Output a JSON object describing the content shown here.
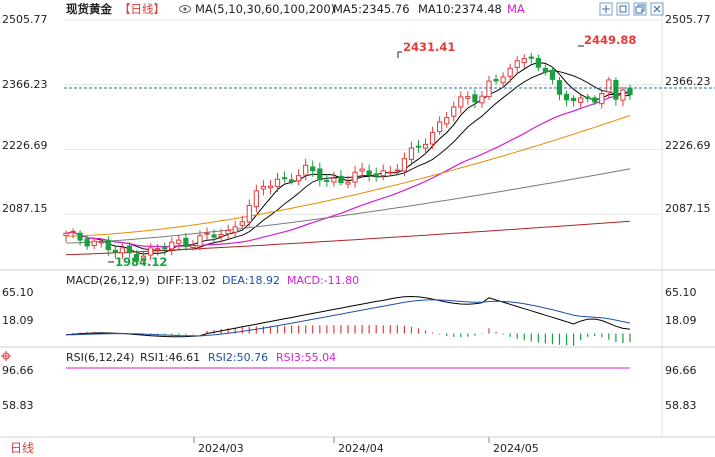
{
  "header": {
    "instrument": "现货黄金",
    "period": "【日线】",
    "ma_label": "MA(5,10,30,60,100,200)",
    "ma5_label": "MA5:2345.76",
    "ma10_label": "MA10:2374.48",
    "ma_more": "MA"
  },
  "toolbar": {
    "icons": [
      "move-icon",
      "window-icon",
      "restore-icon",
      "close-icon"
    ]
  },
  "price_axis": {
    "ticks": [
      "2505.77",
      "2366.23",
      "2226.69",
      "2087.15"
    ],
    "tick_values": [
      2505.77,
      2366.23,
      2226.69,
      2087.15
    ],
    "current": "2366.23",
    "high_label": "2449.88",
    "high2_label": "2431.41",
    "low_label": "1984.12"
  },
  "macd": {
    "label": "MACD(26,12,9)",
    "diff": "DIFF:13.02",
    "dea": "DEA:18.92",
    "macd": "MACD:-11.80",
    "ticks": [
      "65.10",
      "18.09"
    ],
    "tick_values": [
      65.1,
      18.09
    ]
  },
  "rsi": {
    "label": "RSI(6,12,24)",
    "rsi1": "RSI1:46.61",
    "rsi2": "RSI2:50.76",
    "rsi3": "RSI3:55.04",
    "ticks": [
      "96.66",
      "58.83"
    ],
    "tick_values": [
      96.66,
      58.83
    ]
  },
  "footer": {
    "period_button": "日线",
    "dates": [
      "2024/03",
      "2024/04",
      "2024/05"
    ]
  },
  "colors": {
    "up": "#e23b3b",
    "down": "#1a9e3e",
    "ma5": "#000000",
    "ma10": "#111111",
    "ma30": "#d21fd6",
    "ma60": "#e88c00",
    "ma100": "#7a7a7a",
    "ma200": "#b22222",
    "current_line": "#1c6fa8",
    "text": "#222222",
    "grid": "#e6e6e6"
  },
  "chart_data": {
    "type": "candlestick",
    "x_range": [
      "2024-02-05",
      "2024-05-29"
    ],
    "price_range": [
      1984.12,
      2505.77
    ],
    "notable": [
      {
        "label": "2431.41",
        "value": 2431.41,
        "date": "2024-04-12"
      },
      {
        "label": "2449.88",
        "value": 2449.88,
        "date": "2024-05-20"
      },
      {
        "label": "1984.12",
        "value": 1984.12,
        "date": "2024-02-14"
      }
    ]
  }
}
